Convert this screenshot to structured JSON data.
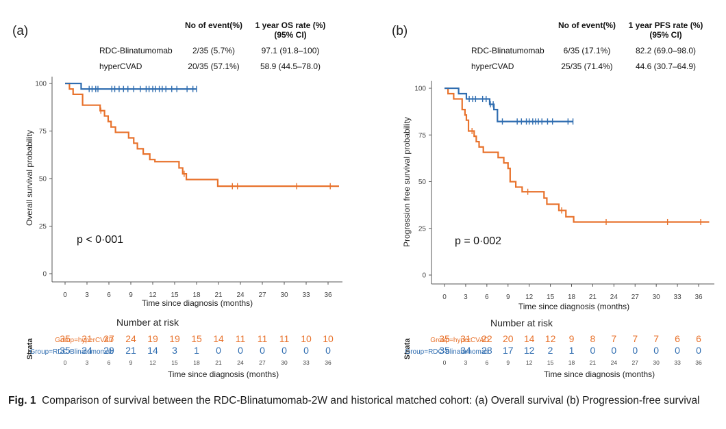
{
  "colors": {
    "hypercvad": "#E8722C",
    "rdc": "#2F6DB0",
    "axis": "#555555"
  },
  "panels": [
    {
      "label": "(a)",
      "table": {
        "headers": [
          "No of event(%)",
          "1 year OS rate (%)",
          "(95% CI)"
        ],
        "rows": [
          {
            "group": "RDC-Blinatumomab",
            "events": "2/35 (5.7%)",
            "rate": "97.1 (91.8–100)"
          },
          {
            "group": "hyperCVAD",
            "events": "20/35 (57.1%)",
            "rate": "58.9 (44.5–78.0)"
          }
        ]
      },
      "pvalue": "p < 0·001",
      "risk": {
        "title": "Number at risk",
        "strata_label": "Strata",
        "xlabel": "Time since diagnosis (months)",
        "rows": [
          {
            "label": "Group=hyperCVAD",
            "values": [
              "35",
              "31",
              "27",
              "24",
              "19",
              "19",
              "15",
              "14",
              "11",
              "11",
              "11",
              "10",
              "10"
            ]
          },
          {
            "label": "Group=RDC-Blinatumomab",
            "values": [
              "35",
              "34",
              "29",
              "21",
              "14",
              "3",
              "1",
              "0",
              "0",
              "0",
              "0",
              "0",
              "0"
            ]
          }
        ]
      }
    },
    {
      "label": "(b)",
      "table": {
        "headers": [
          "No of event(%)",
          "1 year PFS rate (%)",
          "(95% CI)"
        ],
        "rows": [
          {
            "group": "RDC-Blinatumomab",
            "events": "6/35 (17.1%)",
            "rate": "82.2 (69.0–98.0)"
          },
          {
            "group": "hyperCVAD",
            "events": "25/35 (71.4%)",
            "rate": "44.6 (30.7–64.9)"
          }
        ]
      },
      "pvalue": "p = 0·002",
      "risk": {
        "title": "Number at risk",
        "strata_label": "Strata",
        "xlabel": "Time since diagnosis (months)",
        "rows": [
          {
            "label": "Group=hyperCVAD",
            "values": [
              "35",
              "31",
              "22",
              "20",
              "14",
              "12",
              "9",
              "8",
              "7",
              "7",
              "7",
              "6",
              "6"
            ]
          },
          {
            "label": "Group=RDC-Blinatumomab",
            "values": [
              "35",
              "34",
              "28",
              "17",
              "12",
              "2",
              "1",
              "0",
              "0",
              "0",
              "0",
              "0",
              "0"
            ]
          }
        ]
      }
    }
  ],
  "chart_data": [
    {
      "type": "line",
      "subtype": "kaplan-meier",
      "title": "(a)",
      "xlabel": "Time since diagnosis (months)",
      "ylabel": "Overall survival probability",
      "xlim": [
        -1,
        37.5
      ],
      "ylim": [
        0,
        100
      ],
      "xticks": [
        "0",
        "3",
        "6",
        "9",
        "12",
        "15",
        "18",
        "21",
        "24",
        "27",
        "30",
        "33",
        "36"
      ],
      "yticks": [
        "0",
        "25",
        "50",
        "75",
        "100"
      ],
      "series": [
        {
          "name": "Group=RDC-Blinatumomab",
          "color": "#2F6DB0",
          "steps": [
            [
              0,
              100
            ],
            [
              2.2,
              97.1
            ],
            [
              18,
              97.1
            ]
          ],
          "censored": [
            3.3,
            3.7,
            4.2,
            4.5,
            6.4,
            6.8,
            7.4,
            8.0,
            8.6,
            9.4,
            10.3,
            11.1,
            11.5,
            12.0,
            12.4,
            12.9,
            13.3,
            13.8,
            14.6,
            15.3,
            16.7,
            17.5,
            18.0
          ]
        },
        {
          "name": "Group=hyperCVAD",
          "color": "#E8722C",
          "steps": [
            [
              0,
              100
            ],
            [
              0.6,
              97.1
            ],
            [
              1.1,
              94.3
            ],
            [
              2.4,
              88.6
            ],
            [
              4.8,
              85.7
            ],
            [
              5.4,
              82.9
            ],
            [
              5.9,
              80.0
            ],
            [
              6.3,
              77.1
            ],
            [
              6.9,
              74.3
            ],
            [
              8.7,
              71.4
            ],
            [
              9.4,
              68.6
            ],
            [
              9.9,
              65.7
            ],
            [
              10.7,
              62.9
            ],
            [
              11.6,
              60.0
            ],
            [
              12.3,
              58.9
            ],
            [
              15.6,
              55.6
            ],
            [
              16.1,
              52.5
            ],
            [
              16.6,
              49.5
            ],
            [
              20.9,
              46.0
            ],
            [
              37.5,
              46.0
            ]
          ],
          "censored": [
            4.9,
            16.3,
            22.9,
            23.6,
            31.7,
            36.3
          ]
        }
      ]
    },
    {
      "type": "line",
      "subtype": "kaplan-meier",
      "title": "(b)",
      "xlabel": "Time since diagnosis (months)",
      "ylabel": "Progression free survival probability",
      "xlim": [
        -1,
        37.5
      ],
      "ylim": [
        0,
        100
      ],
      "xticks": [
        "0",
        "3",
        "6",
        "9",
        "12",
        "15",
        "18",
        "21",
        "24",
        "27",
        "30",
        "33",
        "36"
      ],
      "yticks": [
        "0",
        "25",
        "50",
        "75",
        "100"
      ],
      "series": [
        {
          "name": "Group=RDC-Blinatumomab",
          "color": "#2F6DB0",
          "steps": [
            [
              0,
              100
            ],
            [
              2.0,
              97.1
            ],
            [
              3.1,
              94.3
            ],
            [
              6.4,
              91.4
            ],
            [
              7.0,
              88.6
            ],
            [
              7.5,
              82.2
            ],
            [
              18.2,
              82.2
            ]
          ],
          "censored": [
            3.5,
            4.0,
            4.4,
            5.4,
            5.9,
            6.5,
            6.9,
            8.2,
            10.3,
            10.9,
            11.6,
            12.0,
            12.5,
            12.9,
            13.3,
            13.8,
            14.6,
            15.3,
            17.5,
            18.2
          ]
        },
        {
          "name": "Group=hyperCVAD",
          "color": "#E8722C",
          "steps": [
            [
              0,
              100
            ],
            [
              0.5,
              97.1
            ],
            [
              1.3,
              94.3
            ],
            [
              2.5,
              88.6
            ],
            [
              2.9,
              85.7
            ],
            [
              3.1,
              82.9
            ],
            [
              3.4,
              77.1
            ],
            [
              4.2,
              74.3
            ],
            [
              4.5,
              71.4
            ],
            [
              4.9,
              68.6
            ],
            [
              5.5,
              65.7
            ],
            [
              7.6,
              62.9
            ],
            [
              8.4,
              60.0
            ],
            [
              9.0,
              57.1
            ],
            [
              9.3,
              50.0
            ],
            [
              10.1,
              47.1
            ],
            [
              11.0,
              44.6
            ],
            [
              14.1,
              41.2
            ],
            [
              14.5,
              37.9
            ],
            [
              16.2,
              34.6
            ],
            [
              17.2,
              31.2
            ],
            [
              18.3,
              28.4
            ],
            [
              37.5,
              28.4
            ]
          ],
          "censored": [
            3.9,
            11.8,
            16.6,
            22.9,
            31.6,
            36.3
          ]
        }
      ]
    }
  ],
  "caption": {
    "label": "Fig. 1",
    "text": "Comparison of survival between the RDC-Blinatumomab-2W and historical matched cohort: (a) Overall survival (b) Progression-free survival"
  }
}
